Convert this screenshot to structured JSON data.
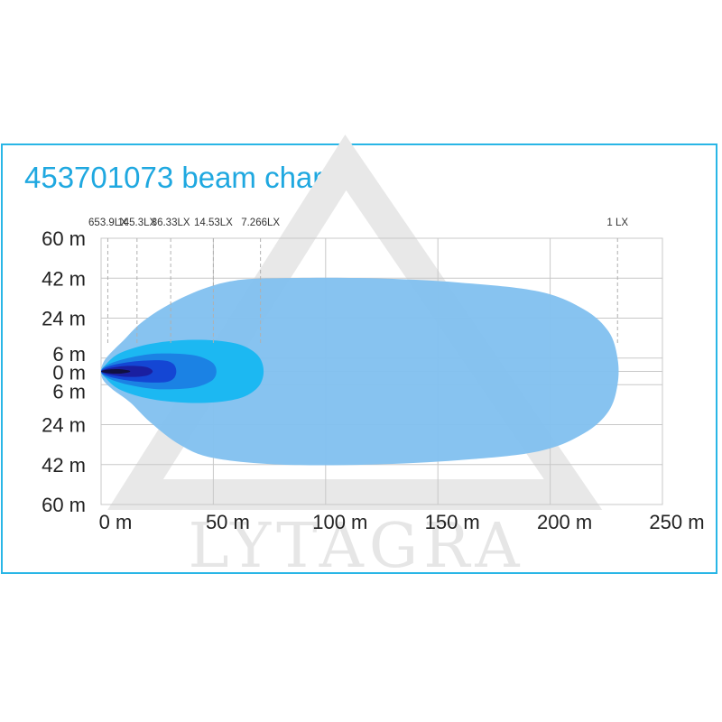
{
  "title": "453701073 beam chart",
  "watermark": "LYTAGRA",
  "colors": {
    "frame": "#29b6e6",
    "title": "#1fa8e0",
    "grid": "#c8c8c8",
    "zone_1lx": "#82c1ef",
    "zone_7lx": "#1cb8f2",
    "zone_14lx": "#1b82e4",
    "zone_36lx": "#1446d4",
    "zone_145lx": "#1a1fa0",
    "zone_653lx": "#101040"
  },
  "chart_data": {
    "type": "area",
    "title": "453701073 beam chart",
    "xlabel": "",
    "ylabel": "",
    "x_ticks": [
      "0 m",
      "50 m",
      "100 m",
      "150 m",
      "200 m",
      "250 m"
    ],
    "x_tick_values": [
      0,
      50,
      100,
      150,
      200,
      250
    ],
    "y_ticks": [
      "60 m",
      "42 m",
      "24 m",
      "6 m",
      "0 m",
      "6 m",
      "24 m",
      "42 m",
      "60 m"
    ],
    "y_tick_values": [
      60,
      42,
      24,
      6,
      0,
      -6,
      -24,
      -42,
      -60
    ],
    "xlim": [
      0,
      250
    ],
    "ylim": [
      -60,
      60
    ],
    "grid": true,
    "isolux_labels": [
      {
        "label": "653.9LX",
        "distance": 3
      },
      {
        "label": "145.3LX",
        "distance": 16
      },
      {
        "label": "36.33LX",
        "distance": 31
      },
      {
        "label": "14.53LX",
        "distance": 50
      },
      {
        "label": "7.266LX",
        "distance": 71
      },
      {
        "label": "1 LX",
        "distance": 230
      }
    ],
    "series": [
      {
        "name": "1 LX",
        "color_key": "zone_1lx",
        "outline": [
          [
            0,
            0
          ],
          [
            1,
            4
          ],
          [
            4,
            8
          ],
          [
            10,
            14
          ],
          [
            18,
            22
          ],
          [
            30,
            30
          ],
          [
            45,
            37
          ],
          [
            60,
            41
          ],
          [
            80,
            42
          ],
          [
            120,
            42
          ],
          [
            160,
            40
          ],
          [
            195,
            36
          ],
          [
            215,
            28
          ],
          [
            226,
            18
          ],
          [
            230,
            6
          ],
          [
            230,
            -6
          ],
          [
            226,
            -18
          ],
          [
            215,
            -28
          ],
          [
            195,
            -36
          ],
          [
            160,
            -40
          ],
          [
            120,
            -42
          ],
          [
            80,
            -42
          ],
          [
            50,
            -39
          ],
          [
            35,
            -33
          ],
          [
            22,
            -23
          ],
          [
            13,
            -14
          ],
          [
            5,
            -8
          ],
          [
            1,
            -4
          ]
        ]
      },
      {
        "name": "7.266LX",
        "color_key": "zone_7lx",
        "outline": [
          [
            0,
            0
          ],
          [
            2,
            3
          ],
          [
            8,
            8
          ],
          [
            20,
            12
          ],
          [
            35,
            14
          ],
          [
            50,
            14
          ],
          [
            62,
            12
          ],
          [
            69,
            8
          ],
          [
            72,
            3
          ],
          [
            72,
            -3
          ],
          [
            69,
            -8
          ],
          [
            62,
            -12
          ],
          [
            50,
            -14
          ],
          [
            35,
            -14
          ],
          [
            20,
            -12
          ],
          [
            8,
            -8
          ],
          [
            2,
            -3
          ]
        ]
      },
      {
        "name": "14.53LX",
        "color_key": "zone_14lx",
        "outline": [
          [
            0,
            0
          ],
          [
            3,
            3
          ],
          [
            12,
            6
          ],
          [
            25,
            8
          ],
          [
            40,
            7.5
          ],
          [
            48,
            5
          ],
          [
            51,
            2
          ],
          [
            51,
            -2
          ],
          [
            48,
            -5
          ],
          [
            40,
            -7.5
          ],
          [
            25,
            -8
          ],
          [
            12,
            -6
          ],
          [
            3,
            -3
          ]
        ]
      },
      {
        "name": "36.33LX",
        "color_key": "zone_36lx",
        "outline": [
          [
            0,
            0
          ],
          [
            4,
            2.5
          ],
          [
            15,
            4.5
          ],
          [
            27,
            5
          ],
          [
            32,
            3.5
          ],
          [
            33.5,
            0
          ],
          [
            32,
            -3.5
          ],
          [
            27,
            -5
          ],
          [
            15,
            -4.5
          ],
          [
            4,
            -2.5
          ]
        ]
      },
      {
        "name": "145.3LX",
        "color_key": "zone_145lx",
        "outline": [
          [
            0,
            0
          ],
          [
            4,
            1.5
          ],
          [
            12,
            2.5
          ],
          [
            20,
            2
          ],
          [
            23,
            0
          ],
          [
            20,
            -2
          ],
          [
            12,
            -2.5
          ],
          [
            4,
            -1.5
          ]
        ]
      },
      {
        "name": "653.9LX",
        "color_key": "zone_653lx",
        "outline": [
          [
            0,
            0
          ],
          [
            3,
            0.8
          ],
          [
            8,
            1
          ],
          [
            12,
            0.5
          ],
          [
            13,
            0
          ],
          [
            12,
            -0.5
          ],
          [
            8,
            -1
          ],
          [
            3,
            -0.8
          ]
        ]
      }
    ]
  }
}
